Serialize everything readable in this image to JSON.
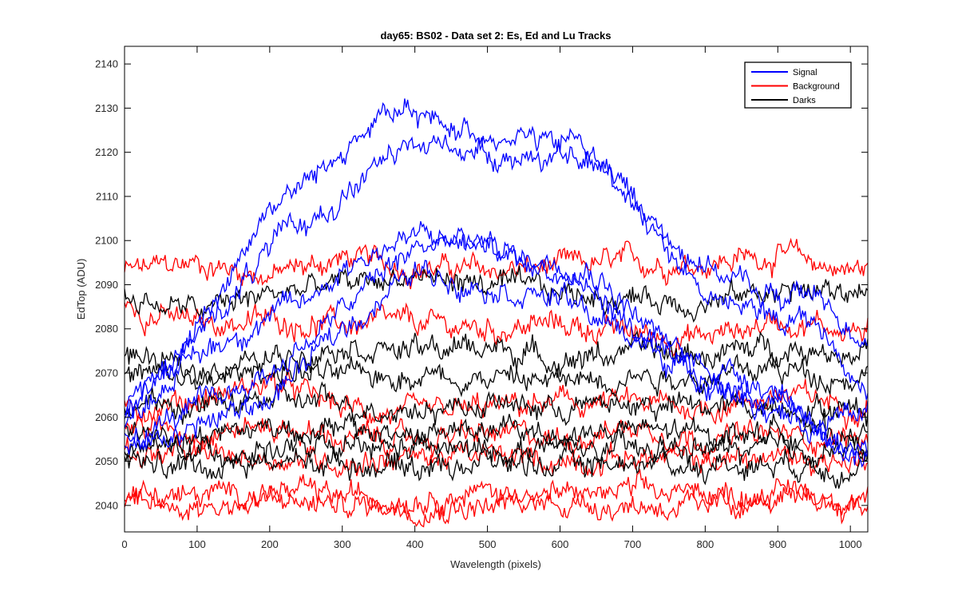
{
  "chart_data": {
    "type": "line",
    "title": "day65: BS02 - Data set 2: Es, Ed and Lu Tracks",
    "xlabel": "Wavelength (pixels)",
    "ylabel": "EdTop (ADU)",
    "xlim": [
      0,
      1024
    ],
    "ylim": [
      2034,
      2144
    ],
    "xticks": [
      0,
      100,
      200,
      300,
      400,
      500,
      600,
      700,
      800,
      900,
      1000
    ],
    "yticks": [
      2040,
      2050,
      2060,
      2070,
      2080,
      2090,
      2100,
      2110,
      2120,
      2130,
      2140
    ],
    "xtick_labels": [
      "0",
      "100",
      "200",
      "300",
      "400",
      "500",
      "600",
      "700",
      "800",
      "900",
      "1000"
    ],
    "ytick_labels": [
      "2040",
      "2050",
      "2060",
      "2070",
      "2080",
      "2090",
      "2100",
      "2110",
      "2120",
      "2130",
      "2140"
    ],
    "grid": false,
    "legend_position": "top-right",
    "legend": [
      {
        "label": "Signal",
        "color": "#0000ff"
      },
      {
        "label": "Background",
        "color": "#ff0000"
      },
      {
        "label": "Darks",
        "color": "#000000"
      }
    ],
    "noise_amplitude": 3,
    "series": [
      {
        "group": "Signal",
        "color": "#0000ff",
        "x": [
          0,
          100,
          200,
          250,
          300,
          350,
          400,
          450,
          500,
          550,
          600,
          620,
          700,
          750,
          800,
          850,
          900,
          950,
          1000,
          1024
        ],
        "values": [
          2060,
          2080,
          2108,
          2113,
          2120,
          2128,
          2128,
          2126,
          2124,
          2124,
          2121,
          2124,
          2110,
          2100,
          2095,
          2090,
          2087,
          2088,
          2080,
          2078
        ]
      },
      {
        "group": "Signal",
        "color": "#0000ff",
        "x": [
          0,
          100,
          200,
          300,
          350,
          400,
          450,
          500,
          550,
          600,
          650,
          700,
          750,
          800,
          850,
          900,
          950,
          1000,
          1024
        ],
        "values": [
          2060,
          2078,
          2098,
          2110,
          2117,
          2121,
          2122,
          2120,
          2119,
          2118,
          2117,
          2110,
          2098,
          2088,
          2084,
          2083,
          2082,
          2070,
          2066
        ]
      },
      {
        "group": "Signal",
        "color": "#0000ff",
        "x": [
          0,
          100,
          200,
          250,
          300,
          350,
          400,
          450,
          500,
          550,
          600,
          650,
          700,
          750,
          800,
          850,
          900,
          950,
          1000,
          1024
        ],
        "values": [
          2060,
          2074,
          2083,
          2086,
          2094,
          2098,
          2101,
          2100,
          2099,
          2096,
          2096,
          2093,
          2084,
          2076,
          2072,
          2070,
          2066,
          2060,
          2058,
          2060
        ]
      },
      {
        "group": "Signal",
        "color": "#0000ff",
        "x": [
          0,
          100,
          200,
          300,
          350,
          400,
          450,
          500,
          550,
          600,
          650,
          700,
          750,
          800,
          850,
          900,
          950,
          1000,
          1024
        ],
        "values": [
          2055,
          2062,
          2070,
          2084,
          2092,
          2098,
          2100,
          2098,
          2095,
          2092,
          2088,
          2080,
          2072,
          2068,
          2065,
          2061,
          2057,
          2054,
          2053
        ]
      },
      {
        "group": "Signal",
        "color": "#0000ff",
        "x": [
          0,
          100,
          200,
          300,
          400,
          500,
          600,
          700,
          800,
          900,
          1000,
          1024
        ],
        "values": [
          2052,
          2058,
          2064,
          2080,
          2093,
          2090,
          2087,
          2078,
          2068,
          2063,
          2052,
          2052
        ]
      },
      {
        "group": "Background",
        "color": "#ff0000",
        "x": [
          0,
          100,
          200,
          300,
          400,
          500,
          600,
          700,
          800,
          900,
          1000,
          1024
        ],
        "values": [
          2093,
          2095,
          2092,
          2096,
          2094,
          2093,
          2094,
          2095,
          2095,
          2097,
          2093,
          2094
        ]
      },
      {
        "group": "Background",
        "color": "#ff0000",
        "x": [
          0,
          100,
          200,
          300,
          400,
          500,
          600,
          700,
          800,
          900,
          1000,
          1024
        ],
        "values": [
          2085,
          2081,
          2082,
          2081,
          2081,
          2080,
          2081,
          2079,
          2078,
          2082,
          2080,
          2079
        ]
      },
      {
        "group": "Background",
        "color": "#ff0000",
        "x": [
          0,
          100,
          200,
          300,
          400,
          500,
          600,
          700,
          800,
          900,
          1000,
          1024
        ],
        "values": [
          2062,
          2064,
          2068,
          2062,
          2060,
          2062,
          2063,
          2063,
          2062,
          2065,
          2063,
          2063
        ]
      },
      {
        "group": "Background",
        "color": "#ff0000",
        "x": [
          0,
          100,
          200,
          300,
          400,
          500,
          600,
          700,
          800,
          900,
          1000,
          1024
        ],
        "values": [
          2058,
          2057,
          2058,
          2055,
          2055,
          2056,
          2055,
          2058,
          2055,
          2056,
          2055,
          2055
        ]
      },
      {
        "group": "Background",
        "color": "#ff0000",
        "x": [
          0,
          100,
          200,
          300,
          400,
          500,
          600,
          700,
          800,
          900,
          1000,
          1024
        ],
        "values": [
          2052,
          2051,
          2051,
          2050,
          2051,
          2051,
          2050,
          2051,
          2050,
          2051,
          2050,
          2050
        ]
      },
      {
        "group": "Background",
        "color": "#ff0000",
        "x": [
          0,
          100,
          200,
          300,
          400,
          500,
          600,
          700,
          800,
          900,
          1000,
          1024
        ],
        "values": [
          2043,
          2042,
          2043,
          2042,
          2042,
          2043,
          2042,
          2043,
          2042,
          2043,
          2042,
          2042
        ]
      },
      {
        "group": "Background",
        "color": "#ff0000",
        "x": [
          0,
          100,
          200,
          300,
          400,
          500,
          600,
          700,
          800,
          900,
          1000,
          1024
        ],
        "values": [
          2040,
          2040,
          2041,
          2040,
          2040,
          2040,
          2041,
          2040,
          2040,
          2041,
          2040,
          2040
        ]
      },
      {
        "group": "Darks",
        "color": "#000000",
        "x": [
          0,
          100,
          200,
          300,
          400,
          500,
          600,
          700,
          800,
          900,
          1000,
          1024
        ],
        "values": [
          2087,
          2084,
          2088,
          2090,
          2092,
          2090,
          2088,
          2087,
          2086,
          2089,
          2088,
          2090
        ]
      },
      {
        "group": "Darks",
        "color": "#000000",
        "x": [
          0,
          100,
          200,
          300,
          400,
          500,
          600,
          700,
          800,
          900,
          1000,
          1024
        ],
        "values": [
          2074,
          2070,
          2073,
          2077,
          2075,
          2076,
          2073,
          2075,
          2074,
          2076,
          2075,
          2076
        ]
      },
      {
        "group": "Darks",
        "color": "#000000",
        "x": [
          0,
          100,
          200,
          300,
          400,
          500,
          600,
          700,
          800,
          900,
          1000,
          1024
        ],
        "values": [
          2070,
          2068,
          2071,
          2069,
          2070,
          2069,
          2068,
          2070,
          2069,
          2071,
          2069,
          2070
        ]
      },
      {
        "group": "Darks",
        "color": "#000000",
        "x": [
          0,
          100,
          200,
          300,
          400,
          500,
          600,
          700,
          800,
          900,
          1000,
          1024
        ],
        "values": [
          2063,
          2062,
          2064,
          2063,
          2062,
          2063,
          2062,
          2063,
          2062,
          2063,
          2062,
          2062
        ]
      },
      {
        "group": "Darks",
        "color": "#000000",
        "x": [
          0,
          100,
          200,
          300,
          400,
          500,
          600,
          700,
          800,
          900,
          1000,
          1024
        ],
        "values": [
          2057,
          2056,
          2058,
          2057,
          2056,
          2057,
          2056,
          2057,
          2056,
          2057,
          2056,
          2056
        ]
      },
      {
        "group": "Darks",
        "color": "#000000",
        "x": [
          0,
          100,
          200,
          300,
          400,
          500,
          600,
          700,
          800,
          900,
          1000,
          1024
        ],
        "values": [
          2053,
          2052,
          2053,
          2052,
          2053,
          2052,
          2053,
          2052,
          2053,
          2052,
          2053,
          2052
        ]
      },
      {
        "group": "Darks",
        "color": "#000000",
        "x": [
          0,
          100,
          200,
          300,
          400,
          500,
          600,
          700,
          800,
          900,
          1000,
          1024
        ],
        "values": [
          2050,
          2049,
          2050,
          2050,
          2049,
          2050,
          2049,
          2050,
          2049,
          2050,
          2049,
          2050
        ]
      }
    ]
  }
}
